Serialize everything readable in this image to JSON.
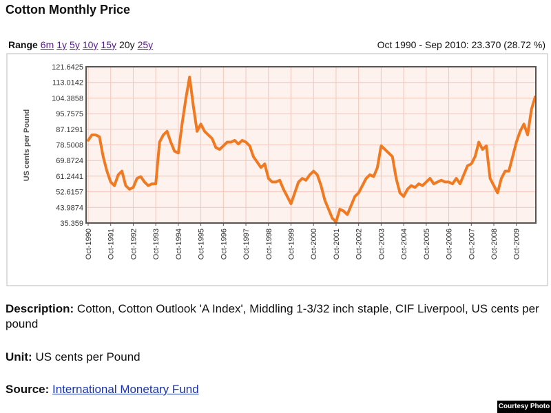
{
  "header": {
    "title": "Cotton Monthly Price"
  },
  "range": {
    "label": "Range",
    "options": [
      "6m",
      "1y",
      "5y",
      "10y",
      "15y",
      "20y",
      "25y"
    ],
    "selected": 5,
    "summary": "Oct 1990 - Sep 2010: 23.370 (28.72 %)"
  },
  "chart_data": {
    "type": "line",
    "y_label": "US cents per Pound",
    "color": "#f07a22",
    "grid": true,
    "ylim": [
      35.359,
      121.6425
    ],
    "yticks": [
      35.359,
      43.9874,
      52.6157,
      61.2441,
      69.8724,
      78.5008,
      87.1291,
      95.7575,
      104.3858,
      113.0142,
      121.6425
    ],
    "categories": [
      "Oct-1990",
      null,
      null,
      null,
      null,
      null,
      "Oct-1991",
      null,
      null,
      null,
      null,
      null,
      "Oct-1992",
      null,
      null,
      null,
      null,
      null,
      "Oct-1993",
      null,
      null,
      null,
      null,
      null,
      "Oct-1994",
      null,
      null,
      null,
      null,
      null,
      "Oct-1995",
      null,
      null,
      null,
      null,
      null,
      "Oct-1996",
      null,
      null,
      null,
      null,
      null,
      "Oct-1997",
      null,
      null,
      null,
      null,
      null,
      "Oct-1998",
      null,
      null,
      null,
      null,
      null,
      "Oct-1999",
      null,
      null,
      null,
      null,
      null,
      "Oct-2000",
      null,
      null,
      null,
      null,
      null,
      "Oct-2001",
      null,
      null,
      null,
      null,
      null,
      "Oct-2002",
      null,
      null,
      null,
      null,
      null,
      "Oct-2003",
      null,
      null,
      null,
      null,
      null,
      "Oct-2004",
      null,
      null,
      null,
      null,
      null,
      "Oct-2005",
      null,
      null,
      null,
      null,
      null,
      "Oct-2006",
      null,
      null,
      null,
      null,
      null,
      "Oct-2007",
      null,
      null,
      null,
      null,
      null,
      "Oct-2008",
      null,
      null,
      null,
      null,
      null,
      "Oct-2009",
      null,
      null,
      null,
      null,
      null
    ],
    "values": [
      81,
      84,
      84,
      83,
      72,
      64,
      58,
      56,
      62,
      64,
      56,
      54,
      55,
      60,
      61,
      58,
      56,
      57,
      57,
      80,
      84,
      86,
      80,
      75,
      74,
      90,
      104,
      116,
      100,
      86,
      90,
      86,
      84,
      82,
      77,
      76,
      78,
      80,
      80,
      81,
      79,
      81,
      80,
      78,
      72,
      69,
      66,
      68,
      60,
      58,
      58,
      59,
      54,
      50,
      46,
      52,
      58,
      60,
      59,
      62,
      64,
      62,
      56,
      48,
      43,
      38,
      36,
      43,
      42,
      40,
      45,
      50,
      52,
      56,
      60,
      62,
      61,
      66,
      78,
      76,
      74,
      72,
      60,
      52,
      50,
      54,
      56,
      55,
      57,
      56,
      58,
      60,
      57,
      58,
      59,
      58,
      58,
      57,
      60,
      57,
      62,
      67,
      68,
      72,
      80,
      76,
      78,
      60,
      56,
      52,
      60,
      64,
      64,
      72,
      80,
      86,
      90,
      84,
      98,
      105
    ]
  },
  "details": [
    {
      "label": "Description:",
      "text": "Cotton, Cotton Outlook 'A Index', Middling 1-3/32 inch staple, CIF Liverpool, US cents per pound"
    },
    {
      "label": "Unit:",
      "text": "US cents per Pound"
    },
    {
      "label": "Source:",
      "link": "International Monetary Fund"
    }
  ],
  "badge": "Courtesy Photo"
}
